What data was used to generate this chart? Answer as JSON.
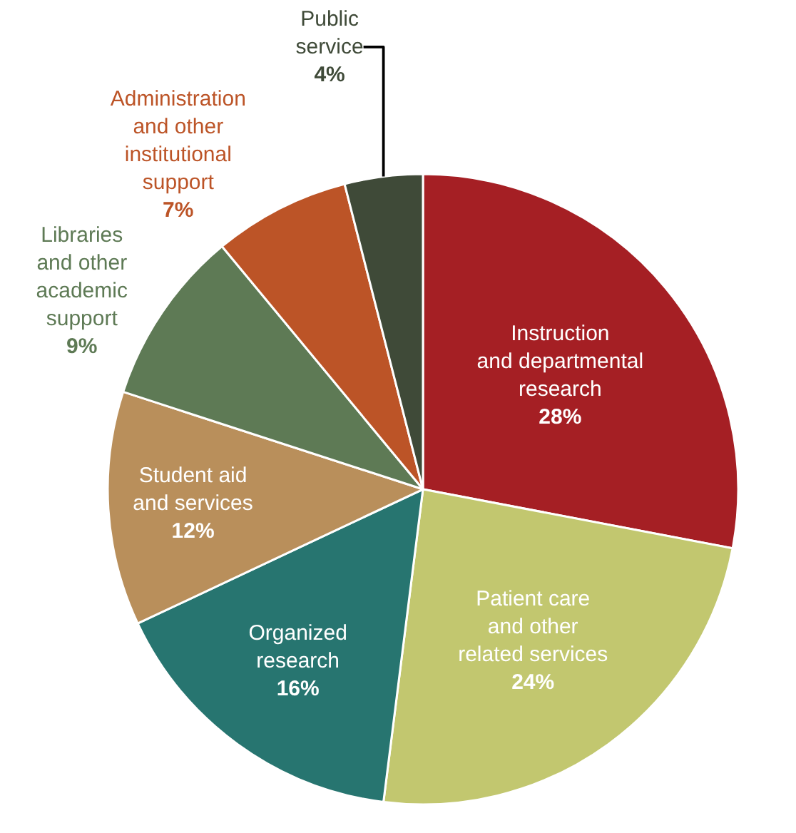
{
  "chart_data": {
    "type": "pie",
    "categories": [
      "Instruction\nand departmental\nresearch",
      "Patient care\nand other\nrelated services",
      "Organized\nresearch",
      "Student aid\nand services",
      "Libraries\nand other\nacademic\nsupport",
      "Administration\nand other\ninstitutional\nsupport",
      "Public\nservice"
    ],
    "values": [
      28,
      24,
      16,
      12,
      9,
      7,
      4
    ],
    "value_labels": [
      "28%",
      "24%",
      "16%",
      "12%",
      "9%",
      "7%",
      "4%"
    ],
    "colors": [
      "#a51f24",
      "#c2c76f",
      "#277570",
      "#b98f5b",
      "#5e7a55",
      "#bc5427",
      "#3f4a38"
    ],
    "legend": false
  }
}
